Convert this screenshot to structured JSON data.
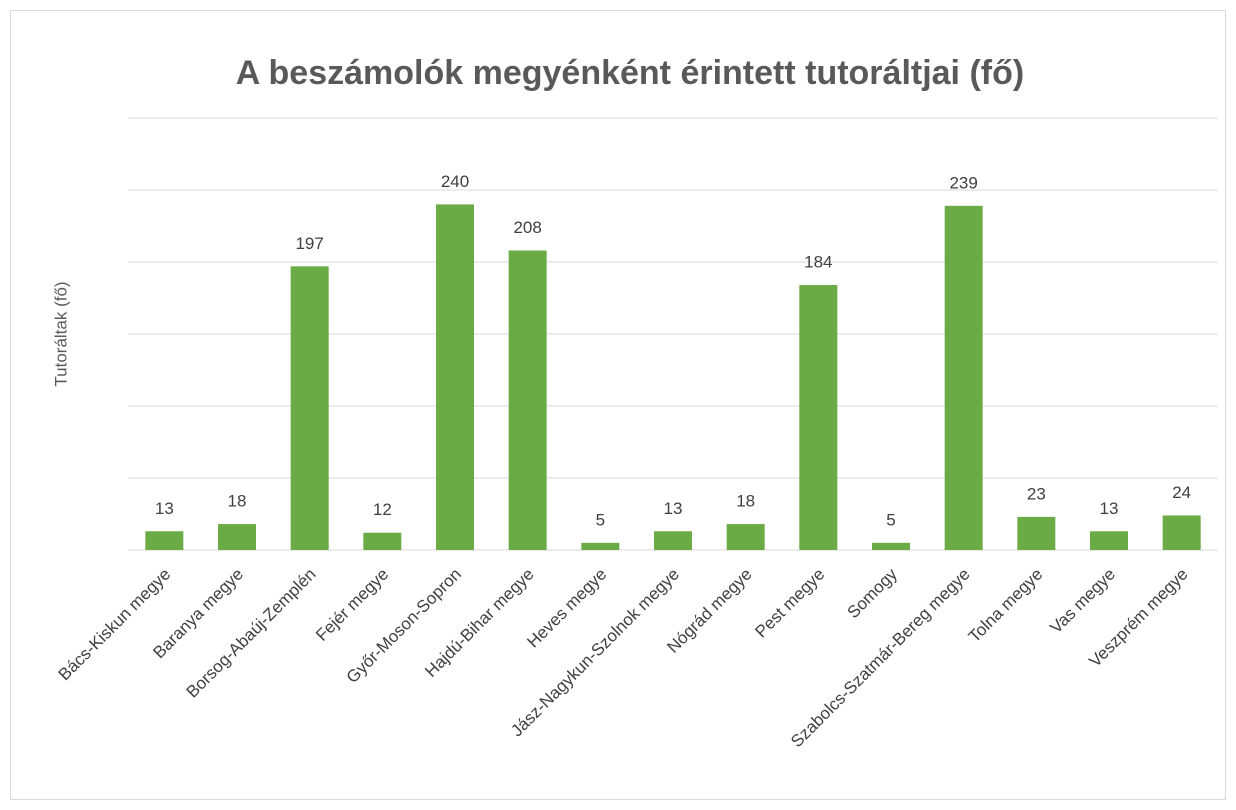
{
  "chart_data": {
    "type": "bar",
    "title": "A beszámolók megyénként érintett tutoráltjai (fő)",
    "y_label": "Tutoráltak (fő)",
    "categories": [
      "Bács-Kiskun megye",
      "Baranya megye",
      "Borsog-Abaúj-Zemplén",
      "Fejér megye",
      "Győr-Moson-Sopron",
      "Hajdú-Bihar megye",
      "Heves megye",
      "Jász-Nagykun-Szolnok megye",
      "Nógrád megye",
      "Pest megye",
      "Somogy",
      "Szabolcs-Szatmár-Bereg megye",
      "Tolna megye",
      "Vas megye",
      "Veszprém megye"
    ],
    "values": [
      13,
      18,
      197,
      12,
      240,
      208,
      5,
      13,
      18,
      184,
      5,
      239,
      23,
      13,
      24
    ],
    "color": "#6aab45",
    "ylim": [
      0,
      300
    ],
    "yticks": [
      0,
      50,
      100,
      150,
      200,
      250,
      300
    ],
    "grid": true,
    "ytick_labels_shown": false
  }
}
